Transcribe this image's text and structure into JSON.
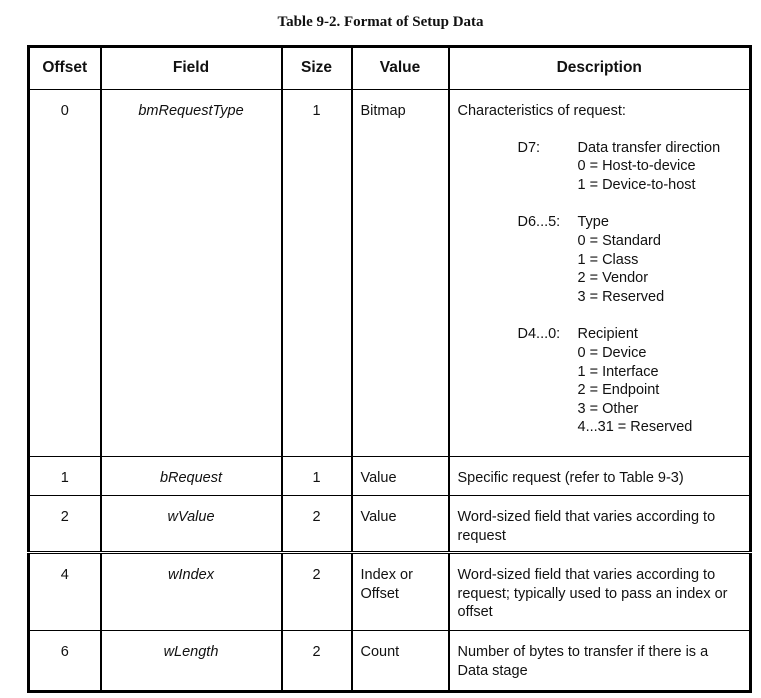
{
  "caption": "Table 9-2.  Format of Setup Data",
  "headers": [
    "Offset",
    "Field",
    "Size",
    "Value",
    "Description"
  ],
  "rows": [
    {
      "offset": "0",
      "field": "bmRequestType",
      "size": "1",
      "value": "Bitmap",
      "description": "Characteristics of request:",
      "bitfields": [
        {
          "label": "D7:",
          "lines": [
            "Data transfer direction",
            "0 = Host-to-device",
            "1 = Device-to-host"
          ]
        },
        {
          "label": "D6...5:",
          "lines": [
            "Type",
            "0 = Standard",
            "1 = Class",
            "2 = Vendor",
            "3 = Reserved"
          ]
        },
        {
          "label": "D4...0:",
          "lines": [
            "Recipient",
            "0 = Device",
            "1 = Interface",
            "2 = Endpoint",
            "3 = Other",
            "4...31 = Reserved"
          ]
        }
      ]
    },
    {
      "offset": "1",
      "field": "bRequest",
      "size": "1",
      "value": "Value",
      "description": "Specific request (refer to Table 9-3)"
    },
    {
      "offset": "2",
      "field": "wValue",
      "size": "2",
      "value": "Value",
      "description": "Word-sized field that varies according to request"
    },
    {
      "offset": "4",
      "field": "wIndex",
      "size": "2",
      "value": "Index or Offset",
      "description": "Word-sized field that varies according to request; typically used to pass an index or offset"
    },
    {
      "offset": "6",
      "field": "wLength",
      "size": "2",
      "value": "Count",
      "description": "Number of bytes to transfer if there is a Data stage"
    }
  ]
}
